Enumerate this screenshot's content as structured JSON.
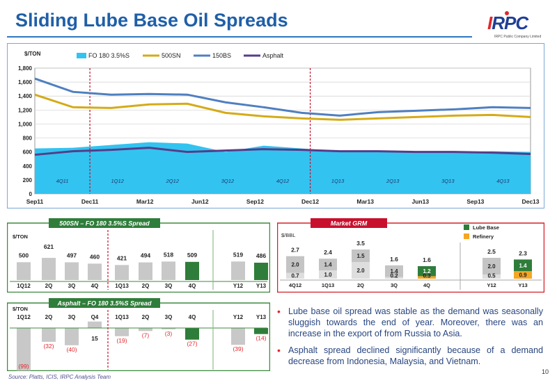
{
  "title": "Sliding Lube Base Oil Spreads",
  "logo": {
    "text": "IRPC",
    "subtext": "IRPC Public Company Limited"
  },
  "colors": {
    "fo": "#33c3f0",
    "s500": "#d4ab18",
    "bs150": "#4f7fc0",
    "asphalt": "#553d8a",
    "green": "#2f7d3a",
    "orange": "#f5a623",
    "grey": "#c8c8c8",
    "red": "#e3262b"
  },
  "bullets": [
    "Lube base oil spread was stable as the demand was seasonally sluggish towards the end of year. Moreover, there was an increase in the export of from Russia to Asia.",
    "Asphalt spread declined significantly because of a demand decrease from Indonesia, Malaysia, and Vietnam."
  ],
  "source": "Source: Platts, ICIS, IRPC Analysis Team",
  "page_number": "10",
  "chart_data": [
    {
      "type": "area",
      "ylabel": "$/TON",
      "ylim": [
        0,
        1800
      ],
      "yticks": [
        "0",
        "200",
        "400",
        "600",
        "800",
        "1,000",
        "1,200",
        "1,400",
        "1,600",
        "1,800"
      ],
      "xticks": [
        "Sep11",
        "Dec11",
        "Mar12",
        "Jun12",
        "Sep12",
        "Dec12",
        "Mar13",
        "Jun13",
        "Sep13",
        "Dec13"
      ],
      "quarter_labels": [
        "4Q11",
        "1Q12",
        "2Q12",
        "3Q12",
        "4Q12",
        "1Q13",
        "2Q13",
        "3Q13",
        "4Q13"
      ],
      "legend_position": "top",
      "grid": true,
      "series": [
        {
          "name": "FO 180 3.5%S",
          "kind": "area",
          "color": "#33c3f0",
          "values": [
            650,
            660,
            700,
            740,
            720,
            600,
            690,
            650,
            610,
            620,
            600,
            600,
            610,
            600
          ]
        },
        {
          "name": "500SN",
          "kind": "line",
          "color": "#d4ab18",
          "values": [
            1420,
            1240,
            1230,
            1280,
            1290,
            1160,
            1110,
            1080,
            1060,
            1080,
            1100,
            1120,
            1130,
            1100
          ]
        },
        {
          "name": "150BS",
          "kind": "line",
          "color": "#4f7fc0",
          "values": [
            1650,
            1460,
            1420,
            1430,
            1420,
            1310,
            1240,
            1160,
            1120,
            1170,
            1190,
            1210,
            1240,
            1230
          ]
        },
        {
          "name": "Asphalt",
          "kind": "line",
          "color": "#553d8a",
          "values": [
            560,
            610,
            630,
            660,
            600,
            620,
            640,
            630,
            610,
            610,
            600,
            600,
            590,
            570
          ]
        }
      ]
    },
    {
      "type": "bar",
      "title": "500SN – FO 180 3.5%S Spread",
      "ylabel": "$/TON",
      "categories": [
        "1Q12",
        "2Q",
        "3Q",
        "4Q",
        "1Q13",
        "2Q",
        "3Q",
        "4Q",
        "Y12",
        "Y13"
      ],
      "values": [
        500,
        621,
        497,
        460,
        421,
        494,
        518,
        509,
        519,
        486
      ],
      "labels": [
        "500",
        "621",
        "497",
        "460",
        "421",
        "494",
        "518",
        "509",
        "519",
        "486"
      ]
    },
    {
      "type": "bar",
      "title": "Market GRM",
      "ylabel": "$/BBL",
      "categories": [
        "4Q12",
        "1Q13",
        "2Q",
        "3Q",
        "4Q",
        "Y12",
        "Y13"
      ],
      "legend": [
        "Lube Base",
        "Refinery"
      ],
      "totals": [
        "2.7",
        "2.4",
        "3.5",
        "1.6",
        "1.6",
        "2.5",
        "2.3"
      ],
      "lube_base": [
        2.0,
        1.4,
        1.5,
        1.4,
        1.2,
        2.0,
        1.4
      ],
      "refinery": [
        0.7,
        1.0,
        2.0,
        0.2,
        0.3,
        0.5,
        0.9
      ],
      "lube_labels": [
        "2.0",
        "1.4",
        "1.5",
        "1.4",
        "1.2",
        "2.0",
        "1.4"
      ],
      "refinery_labels": [
        "0.7",
        "1.0",
        "2.0",
        "0.2",
        "0.3",
        "0.5",
        "0.9"
      ]
    },
    {
      "type": "bar",
      "title": "Asphalt – FO 180 3.5%S Spread",
      "ylabel": "$/TON",
      "categories": [
        "1Q12",
        "2Q",
        "3Q",
        "Q4",
        "1Q13",
        "2Q",
        "3Q",
        "4Q",
        "Y12",
        "Y13"
      ],
      "values": [
        -99,
        -32,
        -40,
        15,
        -19,
        -7,
        -3,
        -27,
        -39,
        -14
      ],
      "labels": [
        "(99)",
        "(32)",
        "(40)",
        "15",
        "(19)",
        "(7)",
        "(3)",
        "(27)",
        "(39)",
        "(14)"
      ]
    }
  ]
}
